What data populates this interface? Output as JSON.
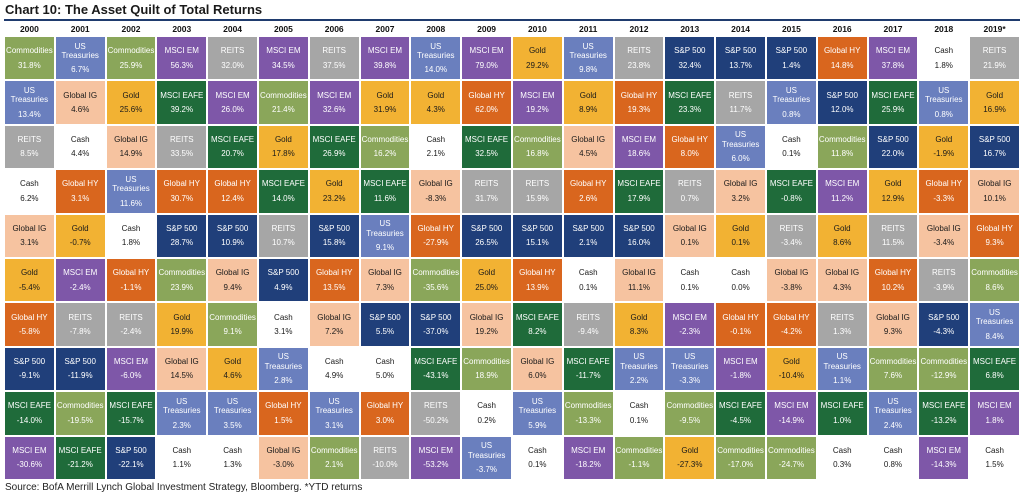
{
  "title": "Chart 10: The Asset Quilt of Total Returns",
  "source": "Source: BofA Merrill Lynch Global Investment Strategy, Bloomberg. *YTD returns",
  "colors": {
    "Commodities": "#8aa65a",
    "US Treasuries": "#6a7fbe",
    "MSCI EM": "#7e57a8",
    "REITS": "#a6a6a6",
    "Gold": "#f2b233",
    "Global HY": "#d9661e",
    "Cash": "#ffffff",
    "Global IG": "#f6c3a0",
    "MSCI EAFE": "#1f6b3a",
    "S&P 500": "#203f7a"
  },
  "light_text_assets": [
    "US Treasuries",
    "MSCI EM",
    "REITS",
    "Global HY",
    "MSCI EAFE",
    "S&P 500",
    "Commodities"
  ],
  "chart_data": {
    "type": "table",
    "title": "Chart 10: The Asset Quilt of Total Returns",
    "years": [
      "2000",
      "2001",
      "2002",
      "2003",
      "2004",
      "2005",
      "2006",
      "2007",
      "2008",
      "2009",
      "2010",
      "2011",
      "2012",
      "2013",
      "2014",
      "2015",
      "2016",
      "2017",
      "2018",
      "2019*"
    ],
    "columns": [
      [
        [
          "Commodities",
          "31.8%"
        ],
        [
          "US Treasuries",
          "13.4%"
        ],
        [
          "REITS",
          "8.5%"
        ],
        [
          "Cash",
          "6.2%"
        ],
        [
          "Global IG",
          "3.1%"
        ],
        [
          "Gold",
          "-5.4%"
        ],
        [
          "Global HY",
          "-5.8%"
        ],
        [
          "S&P 500",
          "-9.1%"
        ],
        [
          "MSCI EAFE",
          "-14.0%"
        ],
        [
          "MSCI EM",
          "-30.6%"
        ]
      ],
      [
        [
          "US Treasuries",
          "6.7%"
        ],
        [
          "Global IG",
          "4.6%"
        ],
        [
          "Cash",
          "4.4%"
        ],
        [
          "Global HY",
          "3.1%"
        ],
        [
          "Gold",
          "-0.7%"
        ],
        [
          "MSCI EM",
          "-2.4%"
        ],
        [
          "REITS",
          "-7.8%"
        ],
        [
          "S&P 500",
          "-11.9%"
        ],
        [
          "Commodities",
          "-19.5%"
        ],
        [
          "MSCI EAFE",
          "-21.2%"
        ]
      ],
      [
        [
          "Commodities",
          "25.9%"
        ],
        [
          "Gold",
          "25.6%"
        ],
        [
          "Global IG",
          "14.9%"
        ],
        [
          "US Treasuries",
          "11.6%"
        ],
        [
          "Cash",
          "1.8%"
        ],
        [
          "Global HY",
          "-1.1%"
        ],
        [
          "REITS",
          "-2.4%"
        ],
        [
          "MSCI EM",
          "-6.0%"
        ],
        [
          "MSCI EAFE",
          "-15.7%"
        ],
        [
          "S&P 500",
          "-22.1%"
        ]
      ],
      [
        [
          "MSCI EM",
          "56.3%"
        ],
        [
          "MSCI EAFE",
          "39.2%"
        ],
        [
          "REITS",
          "33.5%"
        ],
        [
          "Global HY",
          "30.7%"
        ],
        [
          "S&P 500",
          "28.7%"
        ],
        [
          "Commodities",
          "23.9%"
        ],
        [
          "Gold",
          "19.9%"
        ],
        [
          "Global IG",
          "14.5%"
        ],
        [
          "US Treasuries",
          "2.3%"
        ],
        [
          "Cash",
          "1.1%"
        ]
      ],
      [
        [
          "REITS",
          "32.0%"
        ],
        [
          "MSCI EM",
          "26.0%"
        ],
        [
          "MSCI EAFE",
          "20.7%"
        ],
        [
          "Global HY",
          "12.4%"
        ],
        [
          "S&P 500",
          "10.9%"
        ],
        [
          "Global IG",
          "9.4%"
        ],
        [
          "Commodities",
          "9.1%"
        ],
        [
          "Gold",
          "4.6%"
        ],
        [
          "US Treasuries",
          "3.5%"
        ],
        [
          "Cash",
          "1.3%"
        ]
      ],
      [
        [
          "MSCI EM",
          "34.5%"
        ],
        [
          "Commodities",
          "21.4%"
        ],
        [
          "Gold",
          "17.8%"
        ],
        [
          "MSCI EAFE",
          "14.0%"
        ],
        [
          "REITS",
          "10.7%"
        ],
        [
          "S&P 500",
          "4.9%"
        ],
        [
          "Cash",
          "3.1%"
        ],
        [
          "US Treasuries",
          "2.8%"
        ],
        [
          "Global HY",
          "1.5%"
        ],
        [
          "Global IG",
          "-3.0%"
        ]
      ],
      [
        [
          "REITS",
          "37.5%"
        ],
        [
          "MSCI EM",
          "32.6%"
        ],
        [
          "MSCI EAFE",
          "26.9%"
        ],
        [
          "Gold",
          "23.2%"
        ],
        [
          "S&P 500",
          "15.8%"
        ],
        [
          "Global HY",
          "13.5%"
        ],
        [
          "Global IG",
          "7.2%"
        ],
        [
          "Cash",
          "4.9%"
        ],
        [
          "US Treasuries",
          "3.1%"
        ],
        [
          "Commodities",
          "2.1%"
        ]
      ],
      [
        [
          "MSCI EM",
          "39.8%"
        ],
        [
          "Gold",
          "31.9%"
        ],
        [
          "Commodities",
          "16.2%"
        ],
        [
          "MSCI EAFE",
          "11.6%"
        ],
        [
          "US Treasuries",
          "9.1%"
        ],
        [
          "Global IG",
          "7.3%"
        ],
        [
          "S&P 500",
          "5.5%"
        ],
        [
          "Cash",
          "5.0%"
        ],
        [
          "Global HY",
          "3.0%"
        ],
        [
          "REITS",
          "-10.0%"
        ]
      ],
      [
        [
          "US Treasuries",
          "14.0%"
        ],
        [
          "Gold",
          "4.3%"
        ],
        [
          "Cash",
          "2.1%"
        ],
        [
          "Global IG",
          "-8.3%"
        ],
        [
          "Global HY",
          "-27.9%"
        ],
        [
          "Commodities",
          "-35.6%"
        ],
        [
          "S&P 500",
          "-37.0%"
        ],
        [
          "MSCI EAFE",
          "-43.1%"
        ],
        [
          "REITS",
          "-50.2%"
        ],
        [
          "MSCI EM",
          "-53.2%"
        ]
      ],
      [
        [
          "MSCI EM",
          "79.0%"
        ],
        [
          "Global HY",
          "62.0%"
        ],
        [
          "MSCI EAFE",
          "32.5%"
        ],
        [
          "REITS",
          "31.7%"
        ],
        [
          "S&P 500",
          "26.5%"
        ],
        [
          "Gold",
          "25.0%"
        ],
        [
          "Global IG",
          "19.2%"
        ],
        [
          "Commodities",
          "18.9%"
        ],
        [
          "Cash",
          "0.2%"
        ],
        [
          "US Treasuries",
          "-3.7%"
        ]
      ],
      [
        [
          "Gold",
          "29.2%"
        ],
        [
          "MSCI EM",
          "19.2%"
        ],
        [
          "Commodities",
          "16.8%"
        ],
        [
          "REITS",
          "15.9%"
        ],
        [
          "S&P 500",
          "15.1%"
        ],
        [
          "Global HY",
          "13.9%"
        ],
        [
          "MSCI EAFE",
          "8.2%"
        ],
        [
          "Global IG",
          "6.0%"
        ],
        [
          "US Treasuries",
          "5.9%"
        ],
        [
          "Cash",
          "0.1%"
        ]
      ],
      [
        [
          "US Treasuries",
          "9.8%"
        ],
        [
          "Gold",
          "8.9%"
        ],
        [
          "Global IG",
          "4.5%"
        ],
        [
          "Global HY",
          "2.6%"
        ],
        [
          "S&P 500",
          "2.1%"
        ],
        [
          "Cash",
          "0.1%"
        ],
        [
          "REITS",
          "-9.4%"
        ],
        [
          "MSCI EAFE",
          "-11.7%"
        ],
        [
          "Commodities",
          "-13.3%"
        ],
        [
          "MSCI EM",
          "-18.2%"
        ]
      ],
      [
        [
          "REITS",
          "23.8%"
        ],
        [
          "Global HY",
          "19.3%"
        ],
        [
          "MSCI EM",
          "18.6%"
        ],
        [
          "MSCI EAFE",
          "17.9%"
        ],
        [
          "S&P 500",
          "16.0%"
        ],
        [
          "Global IG",
          "11.1%"
        ],
        [
          "Gold",
          "8.3%"
        ],
        [
          "US Treasuries",
          "2.2%"
        ],
        [
          "Cash",
          "0.1%"
        ],
        [
          "Commodities",
          "-1.1%"
        ]
      ],
      [
        [
          "S&P 500",
          "32.4%"
        ],
        [
          "MSCI EAFE",
          "23.3%"
        ],
        [
          "Global HY",
          "8.0%"
        ],
        [
          "REITS",
          "0.7%"
        ],
        [
          "Global IG",
          "0.1%"
        ],
        [
          "Cash",
          "0.1%"
        ],
        [
          "MSCI EM",
          "-2.3%"
        ],
        [
          "US Treasuries",
          "-3.3%"
        ],
        [
          "Commodities",
          "-9.5%"
        ],
        [
          "Gold",
          "-27.3%"
        ]
      ],
      [
        [
          "S&P 500",
          "13.7%"
        ],
        [
          "REITS",
          "11.7%"
        ],
        [
          "US Treasuries",
          "6.0%"
        ],
        [
          "Global IG",
          "3.2%"
        ],
        [
          "Gold",
          "0.1%"
        ],
        [
          "Cash",
          "0.0%"
        ],
        [
          "Global HY",
          "-0.1%"
        ],
        [
          "MSCI EM",
          "-1.8%"
        ],
        [
          "MSCI EAFE",
          "-4.5%"
        ],
        [
          "Commodities",
          "-17.0%"
        ]
      ],
      [
        [
          "S&P 500",
          "1.4%"
        ],
        [
          "US Treasuries",
          "0.8%"
        ],
        [
          "Cash",
          "0.1%"
        ],
        [
          "MSCI EAFE",
          "-0.8%"
        ],
        [
          "REITS",
          "-3.4%"
        ],
        [
          "Global IG",
          "-3.8%"
        ],
        [
          "Global HY",
          "-4.2%"
        ],
        [
          "Gold",
          "-10.4%"
        ],
        [
          "MSCI EM",
          "-14.9%"
        ],
        [
          "Commodities",
          "-24.7%"
        ]
      ],
      [
        [
          "Global HY",
          "14.8%"
        ],
        [
          "S&P 500",
          "12.0%"
        ],
        [
          "Commodities",
          "11.8%"
        ],
        [
          "MSCI EM",
          "11.2%"
        ],
        [
          "Gold",
          "8.6%"
        ],
        [
          "Global IG",
          "4.3%"
        ],
        [
          "REITS",
          "1.3%"
        ],
        [
          "US Treasuries",
          "1.1%"
        ],
        [
          "MSCI EAFE",
          "1.0%"
        ],
        [
          "Cash",
          "0.3%"
        ]
      ],
      [
        [
          "MSCI EM",
          "37.8%"
        ],
        [
          "MSCI EAFE",
          "25.9%"
        ],
        [
          "S&P 500",
          "22.0%"
        ],
        [
          "Gold",
          "12.9%"
        ],
        [
          "REITS",
          "11.5%"
        ],
        [
          "Global HY",
          "10.2%"
        ],
        [
          "Global IG",
          "9.3%"
        ],
        [
          "Commodities",
          "7.6%"
        ],
        [
          "US Treasuries",
          "2.4%"
        ],
        [
          "Cash",
          "0.8%"
        ]
      ],
      [
        [
          "Cash",
          "1.8%"
        ],
        [
          "US Treasuries",
          "0.8%"
        ],
        [
          "Gold",
          "-1.9%"
        ],
        [
          "Global HY",
          "-3.3%"
        ],
        [
          "Global IG",
          "-3.4%"
        ],
        [
          "REITS",
          "-3.9%"
        ],
        [
          "S&P 500",
          "-4.3%"
        ],
        [
          "Commodities",
          "-12.9%"
        ],
        [
          "MSCI EAFE",
          "-13.2%"
        ],
        [
          "MSCI EM",
          "-14.3%"
        ]
      ],
      [
        [
          "REITS",
          "21.9%"
        ],
        [
          "Gold",
          "16.9%"
        ],
        [
          "S&P 500",
          "16.7%"
        ],
        [
          "Global IG",
          "10.1%"
        ],
        [
          "Global HY",
          "9.3%"
        ],
        [
          "Commodities",
          "8.6%"
        ],
        [
          "US Treasuries",
          "8.4%"
        ],
        [
          "MSCI EAFE",
          "6.8%"
        ],
        [
          "MSCI EM",
          "1.8%"
        ],
        [
          "Cash",
          "1.5%"
        ]
      ]
    ]
  }
}
